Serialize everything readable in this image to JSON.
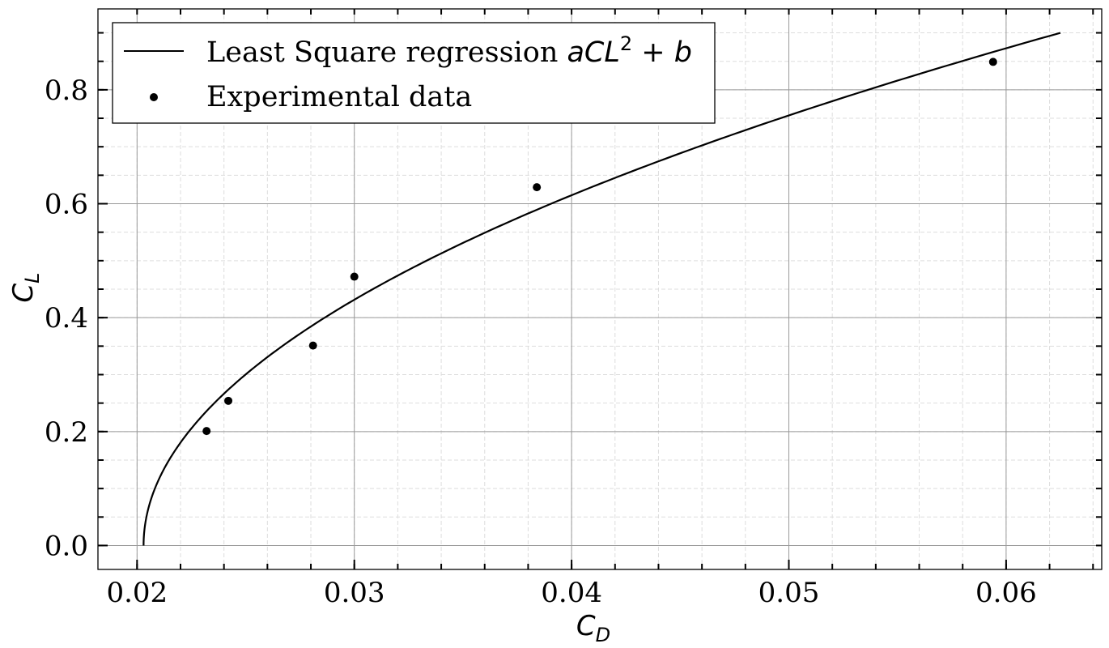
{
  "chart_data": {
    "type": "scatter",
    "xlabel": {
      "base": "C",
      "sub": "D"
    },
    "ylabel": {
      "base": "C",
      "sub": "L"
    },
    "xlim": [
      0.0182,
      0.0644
    ],
    "ylim": [
      -0.042,
      0.942
    ],
    "x_ticks": [
      {
        "value": 0.02,
        "label": "0.02"
      },
      {
        "value": 0.03,
        "label": "0.03"
      },
      {
        "value": 0.04,
        "label": "0.04"
      },
      {
        "value": 0.05,
        "label": "0.05"
      },
      {
        "value": 0.06,
        "label": "0.06"
      }
    ],
    "y_ticks": [
      {
        "value": 0.0,
        "label": "0.0"
      },
      {
        "value": 0.2,
        "label": "0.2"
      },
      {
        "value": 0.4,
        "label": "0.4"
      },
      {
        "value": 0.6,
        "label": "0.6"
      },
      {
        "value": 0.8,
        "label": "0.8"
      }
    ],
    "x_minor_step": 0.002,
    "y_minor_step": 0.05,
    "grid": {
      "major": true,
      "minor": true
    },
    "legend": {
      "position": "top-left",
      "entries": [
        {
          "type": "line",
          "text": "Least Square regression ",
          "math": {
            "pre": "aCL",
            "sup": "2",
            "op": " + ",
            "post": "b"
          }
        },
        {
          "type": "marker",
          "text": "Experimental data"
        }
      ]
    },
    "series": [
      {
        "kind": "line",
        "fit": {
          "form": "CD = a*CL^2 + b",
          "a": 0.0521,
          "b": 0.0203
        },
        "cl_range": [
          0.0,
          0.9
        ],
        "color": "#000000"
      },
      {
        "kind": "scatter",
        "color": "#000000",
        "points": [
          {
            "x": 0.0232,
            "y": 0.201
          },
          {
            "x": 0.0242,
            "y": 0.254
          },
          {
            "x": 0.0281,
            "y": 0.351
          },
          {
            "x": 0.03,
            "y": 0.472
          },
          {
            "x": 0.0384,
            "y": 0.629
          },
          {
            "x": 0.0594,
            "y": 0.849
          }
        ]
      }
    ]
  }
}
